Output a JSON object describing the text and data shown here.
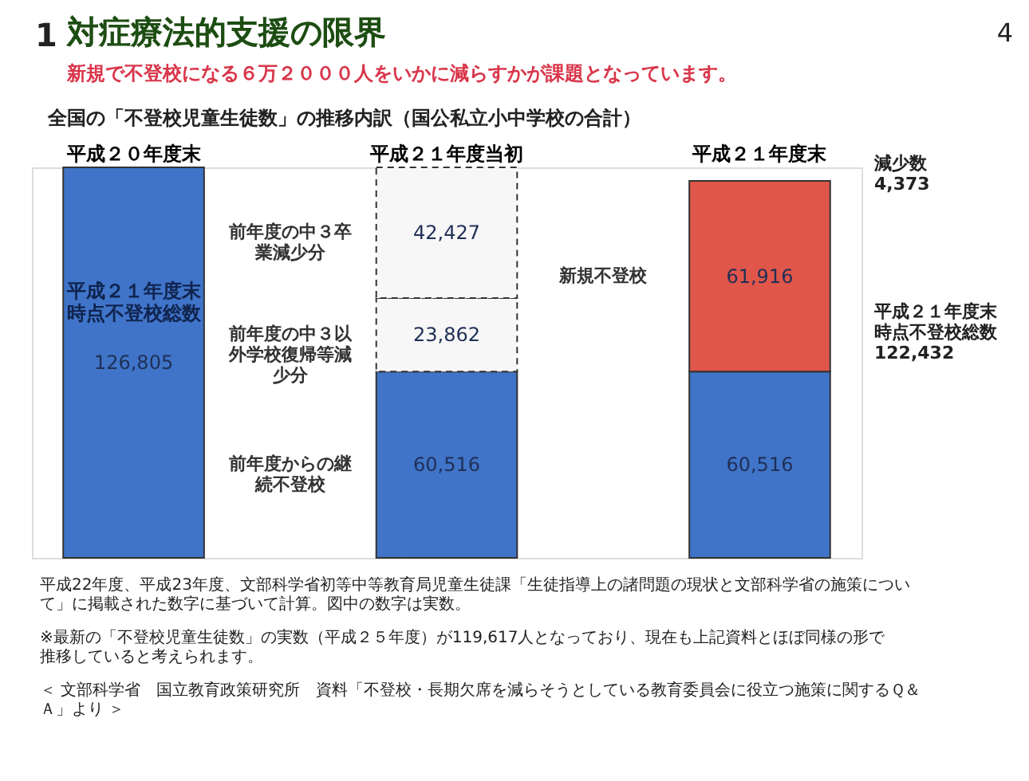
{
  "chart_data": {
    "type": "bar",
    "stacked": true,
    "title": "対症療法的支援の限界",
    "subtitle": "新規で不登校になる６万２０００人をいかに減らすかが課題となっています。",
    "categories": [
      "平成２０年度末",
      "平成２１年度当初",
      "平成２１年度末"
    ],
    "series": [
      {
        "name": "平成２１年度末時点不登校総数",
        "color": "#3f74c8",
        "values": [
          126805,
          null,
          null
        ],
        "value_labels": [
          "126,805",
          null,
          null
        ]
      },
      {
        "name": "前年度からの継続不登校",
        "color": "#3f74c8",
        "values": [
          null,
          60516,
          60516
        ],
        "value_labels": [
          null,
          "60,516",
          "60,516"
        ]
      },
      {
        "name": "前年度の中３以外学校復帰等減少分",
        "color": "#f7f7f7",
        "line_style": "dashed",
        "values": [
          null,
          23862,
          null
        ],
        "value_labels": [
          null,
          "23,862",
          null
        ]
      },
      {
        "name": "前年度の中３卒業減少分",
        "color": "#f7f7f7",
        "line_style": "dashed",
        "values": [
          null,
          42427,
          null
        ],
        "value_labels": [
          null,
          "42,427",
          null
        ]
      },
      {
        "name": "新規不登校",
        "color": "#e0564a",
        "values": [
          null,
          null,
          61916
        ],
        "value_labels": [
          null,
          null,
          "61,916"
        ]
      }
    ],
    "legend": false,
    "grid": false,
    "annotations": [
      "1",
      "4",
      "全国の「不登校児童生徒数」の推移内訳（国公私立小中学校の合計）",
      "平成22年度、平成23年度、文部科学省初等中等教育局児童生徒課「生徒指導上の諸問題の現状と文部科学省の施策について」に掲載された数字に基づいて計算。図中の数字は実数。",
      "※最新の「不登校児童生徒数」の実数（平成２５年度）が119,617人となっており、現在も上記資料とほぼ同様の形で推移していると考えられます。",
      "＜ 文部科学省　国立教育政策研究所　資料「不登校・長期欠席を減らそうとしている教育委員会に役立つ施策に関するＱ＆Ａ」より ＞",
      "減少数 4,373",
      "平成２１年度末時点不登校総数 122,432"
    ]
  }
}
